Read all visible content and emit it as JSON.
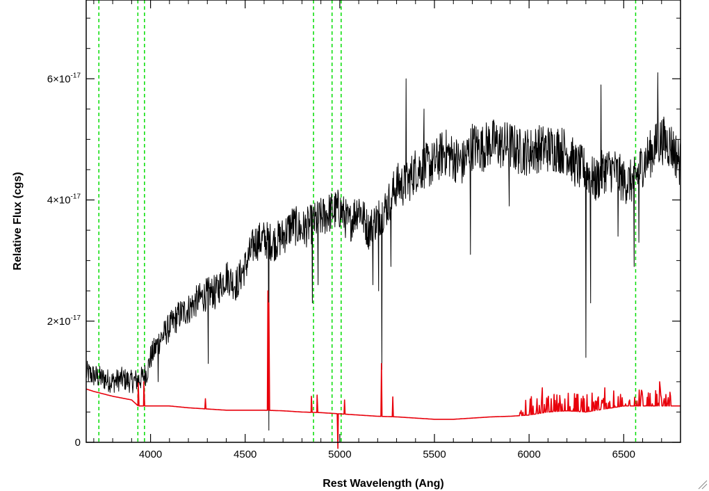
{
  "chart_data": {
    "type": "line",
    "xlabel": "Rest Wavelength (Ang)",
    "ylabel": "Relative Flux (cgs)",
    "xlim": [
      3660,
      6800
    ],
    "ylim": [
      0,
      7.3e-17
    ],
    "x_ticks": [
      4000,
      4500,
      5000,
      5500,
      6000,
      6500
    ],
    "x_tick_labels": [
      "4000",
      "4500",
      "5000",
      "5500",
      "6000",
      "6500"
    ],
    "y_ticks": [
      0,
      2e-17,
      4e-17,
      6e-17
    ],
    "y_tick_labels": [
      {
        "mantissa": "0",
        "exponent": ""
      },
      {
        "mantissa": "2×10",
        "exponent": "-17"
      },
      {
        "mantissa": "4×10",
        "exponent": "-17"
      },
      {
        "mantissa": "6×10",
        "exponent": "-17"
      }
    ],
    "vertical_lines": {
      "x": [
        3727,
        3933,
        3968,
        4861,
        4959,
        5007,
        6563
      ],
      "color": "#00dd00",
      "style": "dashed"
    },
    "series": [
      {
        "color": "#000000",
        "noisy": true,
        "x": [
          3660,
          3700,
          3750,
          3800,
          3850,
          3900,
          3950,
          3980,
          4000,
          4050,
          4100,
          4150,
          4200,
          4250,
          4300,
          4350,
          4400,
          4450,
          4500,
          4550,
          4600,
          4650,
          4700,
          4750,
          4800,
          4850,
          4900,
          4950,
          5000,
          5050,
          5100,
          5150,
          5200,
          5250,
          5300,
          5350,
          5400,
          5450,
          5500,
          5550,
          5600,
          5650,
          5700,
          5750,
          5800,
          5850,
          5900,
          5950,
          6000,
          6050,
          6100,
          6150,
          6200,
          6250,
          6300,
          6350,
          6400,
          6450,
          6500,
          6550,
          6600,
          6650,
          6700,
          6750,
          6800
        ],
        "y": [
          1.15e-17,
          1.1e-17,
          1.05e-17,
          1e-17,
          1.05e-17,
          1e-17,
          1.05e-17,
          1.15e-17,
          1.4e-17,
          1.7e-17,
          1.9e-17,
          2.1e-17,
          2.2e-17,
          2.35e-17,
          2.45e-17,
          2.5e-17,
          2.75e-17,
          2.6e-17,
          2.9e-17,
          3.3e-17,
          3.35e-17,
          3.3e-17,
          3.4e-17,
          3.6e-17,
          3.5e-17,
          3.6e-17,
          3.7e-17,
          3.8e-17,
          3.85e-17,
          3.6e-17,
          3.9e-17,
          3.5e-17,
          3.7e-17,
          3.9e-17,
          4.25e-17,
          4.25e-17,
          4.5e-17,
          4.55e-17,
          4.6e-17,
          4.8e-17,
          4.7e-17,
          4.6e-17,
          4.9e-17,
          4.85e-17,
          4.95e-17,
          4.9e-17,
          4.9e-17,
          4.8e-17,
          4.8e-17,
          4.85e-17,
          4.85e-17,
          4.85e-17,
          4.8e-17,
          4.55e-17,
          4.5e-17,
          4.3e-17,
          4.5e-17,
          4.5e-17,
          4.3e-17,
          4.3e-17,
          4.6e-17,
          4.8e-17,
          5e-17,
          4.9e-17,
          4.6e-17
        ],
        "features": [
          {
            "x": 4040,
            "y": 1e-17
          },
          {
            "x": 4305,
            "y": 1.3e-17
          },
          {
            "x": 4340,
            "y": 2.2e-17
          },
          {
            "x": 4460,
            "y": 2.4e-17
          },
          {
            "x": 4625,
            "y": 2e-18
          },
          {
            "x": 4855,
            "y": 2.3e-17
          },
          {
            "x": 4885,
            "y": 2.6e-17
          },
          {
            "x": 5175,
            "y": 2.6e-17
          },
          {
            "x": 5205,
            "y": 2.5e-17
          },
          {
            "x": 5222,
            "y": 1.2e-17
          },
          {
            "x": 5270,
            "y": 2.9e-17
          },
          {
            "x": 5350,
            "y": 6e-17
          },
          {
            "x": 5445,
            "y": 5.5e-17
          },
          {
            "x": 5690,
            "y": 3.1e-17
          },
          {
            "x": 5895,
            "y": 3.9e-17
          },
          {
            "x": 6300,
            "y": 1.4e-17
          },
          {
            "x": 6325,
            "y": 2.3e-17
          },
          {
            "x": 6380,
            "y": 5.9e-17
          },
          {
            "x": 6470,
            "y": 3.4e-17
          },
          {
            "x": 6555,
            "y": 2.9e-17
          },
          {
            "x": 6580,
            "y": 3.3e-17
          },
          {
            "x": 6680,
            "y": 6.1e-17
          }
        ]
      },
      {
        "color": "#e8000b",
        "noisy": false,
        "x": [
          3660,
          3700,
          3750,
          3800,
          3850,
          3900,
          3935,
          3950,
          4000,
          4100,
          4200,
          4300,
          4400,
          4500,
          4600,
          4700,
          4800,
          4900,
          5000,
          5100,
          5200,
          5300,
          5400,
          5500,
          5600,
          5700,
          5800,
          5900,
          6000,
          6100,
          6200,
          6300,
          6400,
          6500,
          6600,
          6700,
          6800
        ],
        "y": [
          8.8e-18,
          8.4e-18,
          8e-18,
          7.6e-18,
          7.3e-18,
          7e-18,
          6e-18,
          6e-18,
          6e-18,
          6e-18,
          5.7e-18,
          5.5e-18,
          5.3e-18,
          5.3e-18,
          5.3e-18,
          5.2e-18,
          5e-18,
          4.9e-18,
          4.7e-18,
          4.5e-18,
          4.3e-18,
          4.2e-18,
          4e-18,
          3.8e-18,
          3.8e-18,
          4e-18,
          4.2e-18,
          4.3e-18,
          4.5e-18,
          5e-18,
          5.2e-18,
          5e-18,
          5.5e-18,
          6e-18,
          6e-18,
          6e-18,
          6e-18
        ],
        "features": [
          {
            "x": 3935,
            "y": 9.8e-18
          },
          {
            "x": 3965,
            "y": 1e-17
          },
          {
            "x": 4290,
            "y": 7.2e-18
          },
          {
            "x": 4620,
            "y": 2.5e-17
          },
          {
            "x": 4625,
            "y": 2.3e-17
          },
          {
            "x": 4850,
            "y": 7.6e-18
          },
          {
            "x": 4880,
            "y": 7.8e-18
          },
          {
            "x": 4990,
            "y": -1e-18
          },
          {
            "x": 5025,
            "y": 7e-18
          },
          {
            "x": 5220,
            "y": 1.3e-17
          },
          {
            "x": 5280,
            "y": 7.5e-18
          },
          {
            "x": 6070,
            "y": 9e-18
          },
          {
            "x": 6400,
            "y": 9e-18
          },
          {
            "x": 6690,
            "y": 1e-17
          }
        ]
      }
    ]
  }
}
